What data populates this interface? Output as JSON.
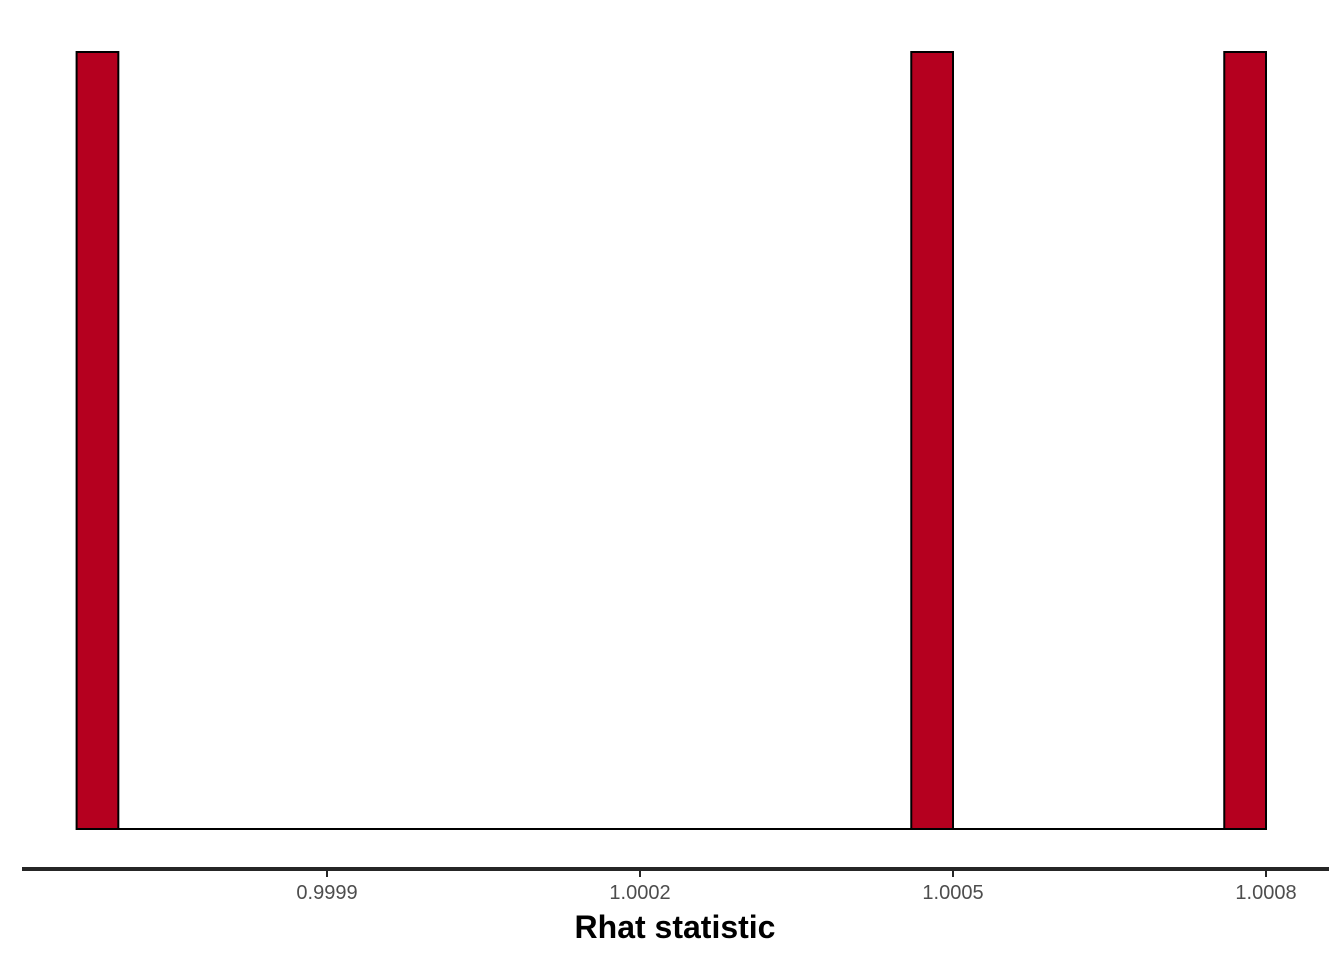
{
  "chart_data": {
    "type": "bar",
    "subtype": "histogram",
    "title": "",
    "xlabel": "Rhat statistic",
    "ylabel": "",
    "x_ticks": [
      0.9999,
      1.0002,
      1.0005,
      1.0008
    ],
    "x_tick_labels": [
      "0.9999",
      "1.0002",
      "1.0005",
      "1.0008"
    ],
    "xlim": [
      0.99965,
      1.00085
    ],
    "bins": [
      {
        "x_start": 0.99966,
        "x_end": 0.9997,
        "count": 1
      },
      {
        "x_start": 1.00046,
        "x_end": 1.0005,
        "count": 1
      },
      {
        "x_start": 1.00076,
        "x_end": 1.0008,
        "count": 1
      }
    ],
    "y_axis_visible": false,
    "grid": false,
    "legend": "none",
    "colors": {
      "bar_fill": "#b5001f",
      "bar_stroke": "#000000",
      "axis_line": "#262626"
    }
  }
}
